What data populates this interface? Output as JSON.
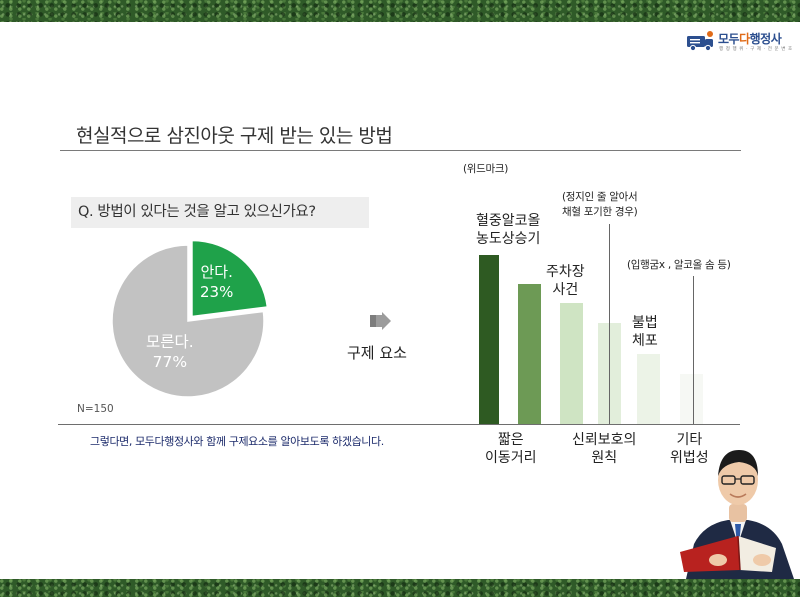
{
  "logo": {
    "name_prefix": "모두",
    "name_highlight": "다",
    "name_suffix": "행정사",
    "tagline": "행 정 행 위 · 구 제 · 전 문 변 호"
  },
  "title": "현실적으로 삼진아웃 구제 받는 있는 방법",
  "survey": {
    "question": "Q. 방법이 있다는 것을 알고 있으신가요?",
    "known_label": "안다.",
    "known_pct_text": "23%",
    "unknown_label": "모른다.",
    "unknown_pct_text": "77%",
    "sample": "N=150",
    "colors": {
      "known": "#1fa24a",
      "unknown": "#c2c2c2"
    }
  },
  "chart_data": {
    "type": "pie",
    "categories": [
      "안다.",
      "모른다."
    ],
    "values": [
      23,
      77
    ]
  },
  "causes": {
    "label": "구제 요소",
    "items": [
      {
        "label_lines": [
          "혈중알코올",
          "농도상승기"
        ],
        "note_lines": [
          "(위드마크)"
        ],
        "color": "#2e5a22"
      },
      {
        "label_lines": [
          "짧은",
          "이동거리"
        ],
        "note_lines": [],
        "color": "#6d9a55"
      },
      {
        "label_lines": [
          "주차장",
          "사건"
        ],
        "note_lines": [],
        "color": "#cfe4c3"
      },
      {
        "label_lines": [
          "신뢰보호의",
          "원칙"
        ],
        "note_lines": [
          "(정지인 줄 알아서",
          "채혈 포기한 경우)"
        ],
        "color": "#e2eedb"
      },
      {
        "label_lines": [
          "불법",
          "체포"
        ],
        "note_lines": [],
        "color": "#ecf3e7"
      },
      {
        "label_lines": [
          "기타",
          "위법성"
        ],
        "note_lines": [
          "(입행굼x , 알코올 솜 등)"
        ],
        "color": "#f6f8f4"
      }
    ]
  },
  "footer_note": "그렇다면, 모두다행정사와 함께 구제요소를 알아보도록 하겠습니다."
}
